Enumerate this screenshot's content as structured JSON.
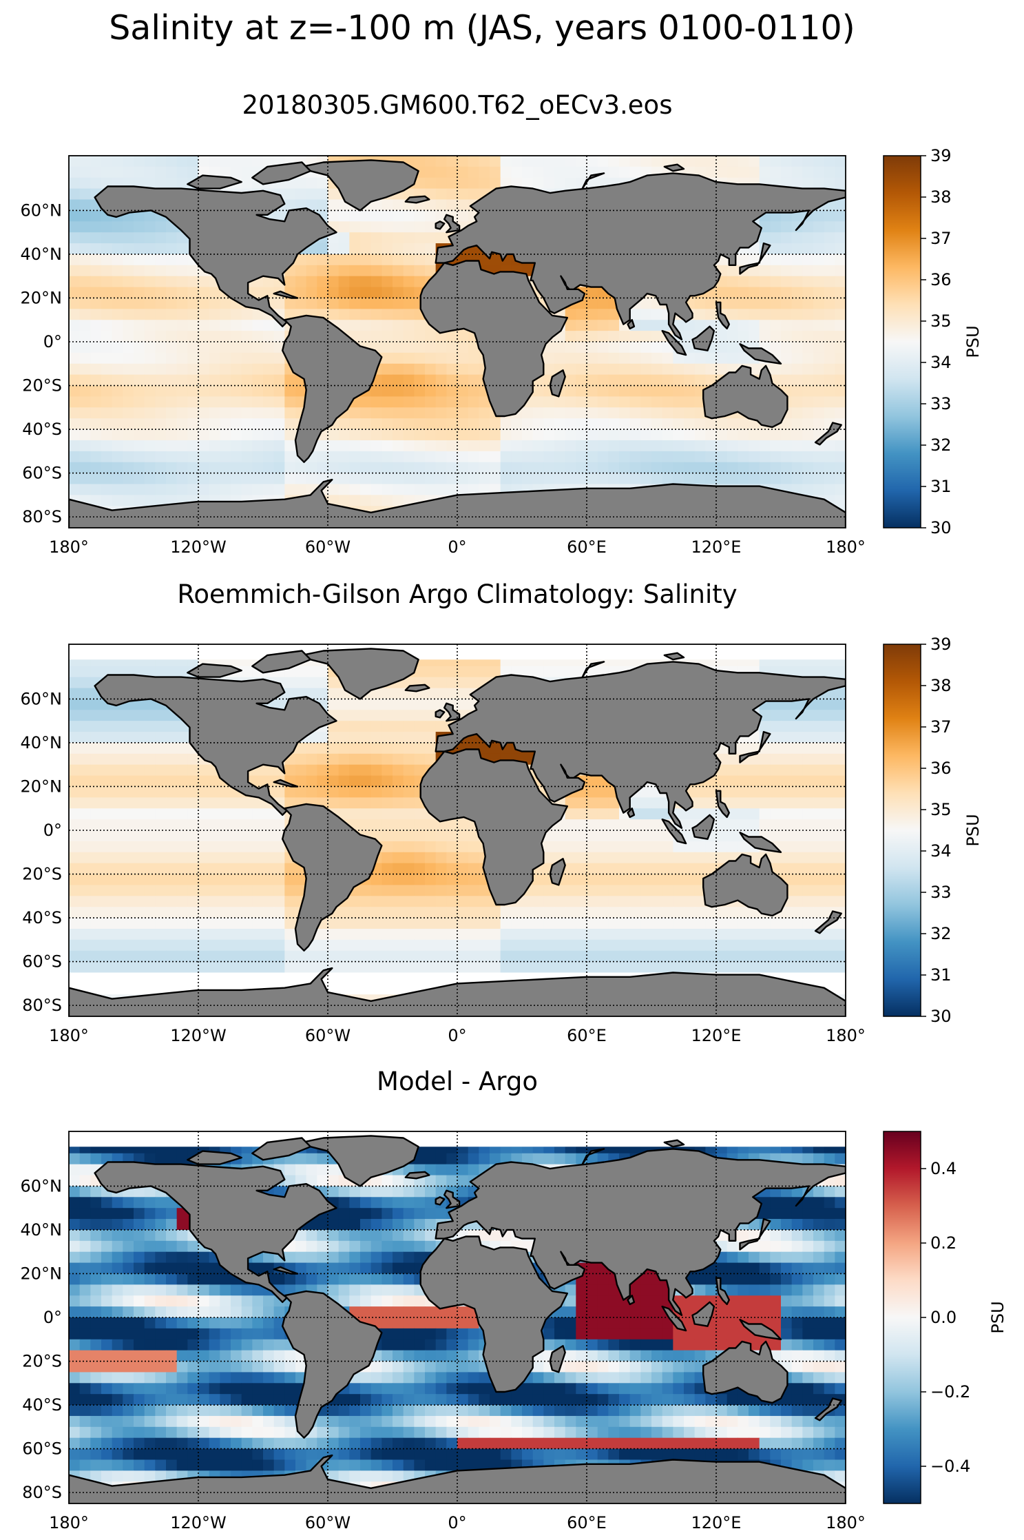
{
  "figure": {
    "suptitle": "Salinity at z=-100 m (JAS, years 0100-0110)"
  },
  "colors": {
    "land": "#808080",
    "land_edge": "#000000",
    "salinity_cmap": [
      "#053061",
      "#2166ac",
      "#4393c3",
      "#92c5de",
      "#d1e5f0",
      "#f7f7f7",
      "#fee0b6",
      "#fdb863",
      "#e08214",
      "#b35806",
      "#7f3b08"
    ],
    "diff_cmap": [
      "#053061",
      "#2166ac",
      "#4393c3",
      "#92c5de",
      "#d1e5f0",
      "#f7f7f7",
      "#fddbc7",
      "#f4a582",
      "#d6604d",
      "#b2182b",
      "#67001f"
    ]
  },
  "chart_data": [
    {
      "type": "heatmap",
      "title": "20180305.GM600.T62_oECv3.eos",
      "xlim": [
        -180,
        180
      ],
      "ylim": [
        -85,
        85
      ],
      "x_ticks": [
        -180,
        -120,
        -60,
        0,
        60,
        120,
        180
      ],
      "x_tick_labels": [
        "180°",
        "120°W",
        "60°W",
        "0°",
        "60°E",
        "120°E",
        "180°"
      ],
      "y_ticks": [
        60,
        40,
        20,
        0,
        -20,
        -40,
        -60,
        -80
      ],
      "y_tick_labels": [
        "60°N",
        "40°N",
        "20°N",
        "0°",
        "20°S",
        "40°S",
        "60°S",
        "80°S"
      ],
      "grid": "dotted",
      "colorbar": {
        "label": "PSU",
        "vmin": 30,
        "vmax": 39,
        "ticks": [
          30,
          31,
          32,
          33,
          34,
          35,
          36,
          37,
          38,
          39
        ],
        "tick_labels": [
          "30",
          "31",
          "32",
          "33",
          "34",
          "35",
          "36",
          "37",
          "38",
          "39"
        ],
        "cmap": "salinity"
      },
      "field": "model_salinity"
    },
    {
      "type": "heatmap",
      "title": "Roemmich-Gilson Argo Climatology: Salinity",
      "xlim": [
        -180,
        180
      ],
      "ylim": [
        -85,
        85
      ],
      "x_ticks": [
        -180,
        -120,
        -60,
        0,
        60,
        120,
        180
      ],
      "x_tick_labels": [
        "180°",
        "120°W",
        "60°W",
        "0°",
        "60°E",
        "120°E",
        "180°"
      ],
      "y_ticks": [
        60,
        40,
        20,
        0,
        -20,
        -40,
        -60,
        -80
      ],
      "y_tick_labels": [
        "60°N",
        "40°N",
        "20°N",
        "0°",
        "20°S",
        "40°S",
        "60°S",
        "80°S"
      ],
      "grid": "dotted",
      "colorbar": {
        "label": "PSU",
        "vmin": 30,
        "vmax": 39,
        "ticks": [
          30,
          31,
          32,
          33,
          34,
          35,
          36,
          37,
          38,
          39
        ],
        "tick_labels": [
          "30",
          "31",
          "32",
          "33",
          "34",
          "35",
          "36",
          "37",
          "38",
          "39"
        ],
        "cmap": "salinity"
      },
      "field": "argo_salinity"
    },
    {
      "type": "heatmap",
      "title": "Model - Argo",
      "xlim": [
        -180,
        180
      ],
      "ylim": [
        -85,
        85
      ],
      "x_ticks": [
        -180,
        -120,
        -60,
        0,
        60,
        120,
        180
      ],
      "x_tick_labels": [
        "180°",
        "120°W",
        "60°W",
        "0°",
        "60°E",
        "120°E",
        "180°"
      ],
      "y_ticks": [
        60,
        40,
        20,
        0,
        -20,
        -40,
        -60,
        -80
      ],
      "y_tick_labels": [
        "60°N",
        "40°N",
        "20°N",
        "0°",
        "20°S",
        "40°S",
        "60°S",
        "80°S"
      ],
      "grid": "dotted",
      "colorbar": {
        "label": "PSU",
        "vmin": -0.5,
        "vmax": 0.5,
        "ticks": [
          0.4,
          0.2,
          0.0,
          -0.2,
          -0.4
        ],
        "tick_labels": [
          "0.4",
          "0.2",
          "0.0",
          "−0.2",
          "−0.4"
        ],
        "cmap": "diff"
      },
      "field": "difference"
    }
  ]
}
